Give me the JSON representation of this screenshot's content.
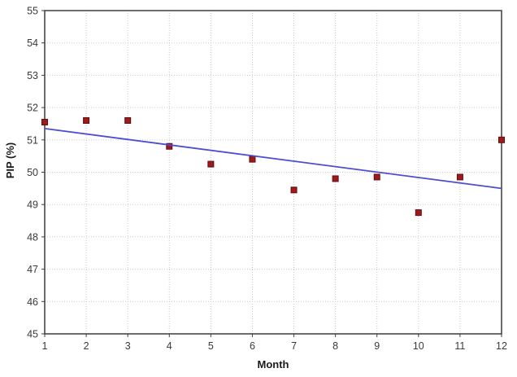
{
  "chart_data": {
    "type": "scatter",
    "title": "",
    "xlabel": "Month",
    "ylabel": "PIP (%)",
    "xlim": [
      1,
      12
    ],
    "ylim": [
      45,
      55
    ],
    "x_ticks": [
      1,
      2,
      3,
      4,
      5,
      6,
      7,
      8,
      9,
      10,
      11,
      12
    ],
    "y_ticks": [
      45,
      46,
      47,
      48,
      49,
      50,
      51,
      52,
      53,
      54,
      55
    ],
    "grid": true,
    "legend": false,
    "x": [
      1,
      2,
      3,
      4,
      5,
      6,
      7,
      8,
      9,
      10,
      11,
      12
    ],
    "series": [
      {
        "name": "PIP observations",
        "kind": "scatter",
        "marker": "square",
        "values": [
          51.55,
          51.6,
          51.6,
          50.8,
          50.25,
          50.4,
          49.45,
          49.8,
          49.85,
          48.75,
          49.85,
          51.0
        ]
      },
      {
        "name": "trend-line",
        "kind": "line",
        "points": [
          {
            "x": 1,
            "y": 51.35
          },
          {
            "x": 12,
            "y": 49.5
          }
        ]
      }
    ]
  },
  "style": {
    "marker_fill": "#9e1a1c",
    "marker_stroke": "#5f0f10",
    "trend_color": "#4d4dd3",
    "grid_color": "#c9c9c9",
    "border_color": "#3c3c3c",
    "tick_color": "#3c3c3c",
    "tick_label_color": "#3a3a3a",
    "background": "#ffffff"
  }
}
